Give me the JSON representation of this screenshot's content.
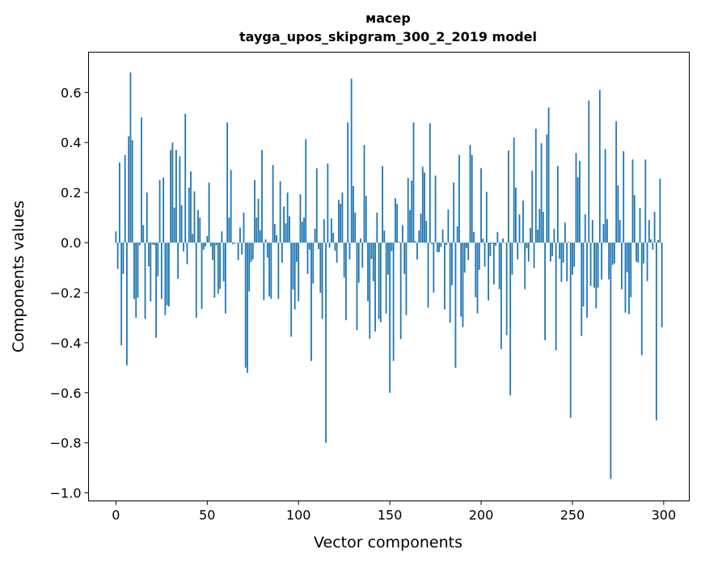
{
  "chart_data": {
    "type": "bar",
    "title_line1": "мacep",
    "title_line2": "tayga_upos_skipgram_300_2_2019 model",
    "xlabel": "Vector components",
    "ylabel": "Components values",
    "xlim": [
      -15,
      314
    ],
    "ylim": [
      -1.032,
      0.761
    ],
    "xticks": [
      0,
      50,
      100,
      150,
      200,
      250,
      300
    ],
    "xtick_labels": [
      "0",
      "50",
      "100",
      "150",
      "200",
      "250",
      "300"
    ],
    "yticks": [
      -1.0,
      -0.8,
      -0.6,
      -0.4,
      -0.2,
      0.0,
      0.2,
      0.4,
      0.6
    ],
    "ytick_labels": [
      "−1.0",
      "−0.8",
      "−0.6",
      "−0.4",
      "−0.2",
      "0.0",
      "0.2",
      "0.4",
      "0.6"
    ],
    "grid": false,
    "bar_color": "#1f77b4",
    "values": [
      0.045,
      -0.105,
      0.32,
      -0.41,
      -0.125,
      0.35,
      -0.49,
      0.425,
      0.68,
      0.41,
      -0.225,
      -0.3,
      -0.22,
      -0.01,
      0.5,
      0.07,
      -0.305,
      0.2,
      -0.095,
      -0.235,
      -0.008,
      -0.01,
      -0.38,
      -0.135,
      0.25,
      -0.225,
      0.26,
      -0.29,
      -0.25,
      -0.255,
      0.37,
      0.4,
      0.14,
      0.37,
      -0.145,
      0.345,
      0.15,
      -0.035,
      0.515,
      -0.086,
      0.22,
      0.285,
      0.035,
      0.205,
      -0.3,
      0.13,
      0.1,
      -0.265,
      -0.028,
      -0.015,
      0.026,
      0.24,
      -0.015,
      -0.07,
      -0.22,
      -0.01,
      -0.205,
      -0.185,
      0.045,
      -0.155,
      -0.283,
      0.48,
      0.1,
      0.29,
      -0.006,
      -0.004,
      0.0,
      -0.07,
      0.06,
      -0.047,
      0.12,
      -0.5,
      -0.52,
      -0.195,
      -0.077,
      -0.067,
      0.25,
      0.1,
      0.175,
      0.05,
      0.37,
      -0.23,
      0.013,
      -0.06,
      -0.215,
      -0.225,
      0.31,
      0.075,
      0.03,
      -0.225,
      0.245,
      -0.08,
      0.145,
      0.077,
      0.2,
      0.105,
      -0.376,
      -0.187,
      -0.267,
      -0.077,
      -0.234,
      0.193,
      0.084,
      0.1,
      0.413,
      -0.125,
      -0.028,
      -0.473,
      -0.163,
      0.055,
      0.297,
      -0.026,
      -0.2,
      -0.305,
      0.094,
      -0.8,
      0.316,
      -0.02,
      0.097,
      0.039,
      -0.032,
      -0.08,
      0.17,
      0.155,
      0.2,
      -0.14,
      -0.31,
      0.48,
      -0.067,
      0.655,
      0.226,
      0.12,
      -0.35,
      -0.16,
      0.016,
      -0.1,
      0.39,
      0.187,
      -0.234,
      -0.384,
      -0.065,
      -0.154,
      -0.355,
      0.12,
      -0.305,
      -0.318,
      0.306,
      0.048,
      -0.283,
      -0.128,
      -0.6,
      -0.034,
      -0.473,
      0.177,
      0.155,
      0.003,
      -0.386,
      0.07,
      -0.125,
      -0.29,
      0.258,
      0.13,
      0.248,
      0.48,
      0.006,
      -0.067,
      0.048,
      0.116,
      0.303,
      0.28,
      0.087,
      -0.26,
      0.477,
      -0.006,
      -0.2,
      0.268,
      -0.038,
      -0.038,
      -0.018,
      0.052,
      -0.267,
      -0.009,
      0.132,
      -0.32,
      -0.17,
      0.24,
      -0.5,
      0.065,
      0.35,
      -0.296,
      -0.338,
      -0.12,
      -0.022,
      -0.07,
      0.39,
      0.35,
      0.042,
      -0.218,
      -0.283,
      -0.109,
      0.297,
      0.016,
      -0.096,
      0.203,
      -0.231,
      -0.054,
      -0.005,
      -0.167,
      -0.012,
      0.042,
      -0.186,
      -0.425,
      0.016,
      -0.002,
      -0.37,
      0.368,
      -0.61,
      -0.128,
      0.42,
      0.22,
      -0.067,
      0.113,
      -0.003,
      0.168,
      -0.186,
      -0.022,
      -0.076,
      0.058,
      0.287,
      -0.102,
      0.455,
      0.052,
      0.135,
      0.397,
      0.123,
      -0.39,
      0.432,
      0.54,
      -0.076,
      -0.054,
      0.055,
      -0.43,
      0.306,
      -0.065,
      -0.157,
      -0.08,
      0.08,
      -0.154,
      0.003,
      -0.7,
      -0.128,
      -0.096,
      0.358,
      0.261,
      0.326,
      -0.373,
      -0.255,
      0.113,
      -0.3,
      0.568,
      -0.173,
      0.09,
      -0.18,
      -0.263,
      -0.18,
      0.61,
      -0.147,
      0.074,
      0.374,
      0.094,
      -0.147,
      -0.944,
      -0.089,
      -0.083,
      0.484,
      0.229,
      0.09,
      -0.186,
      0.365,
      -0.28,
      -0.118,
      -0.286,
      -0.218,
      0.332,
      0.19,
      -0.076,
      -0.08,
      0.139,
      -0.45,
      -0.083,
      0.332,
      -0.154,
      0.09,
      0.013,
      -0.028,
      0.123,
      -0.71,
      0.01,
      0.255,
      -0.338
    ]
  }
}
